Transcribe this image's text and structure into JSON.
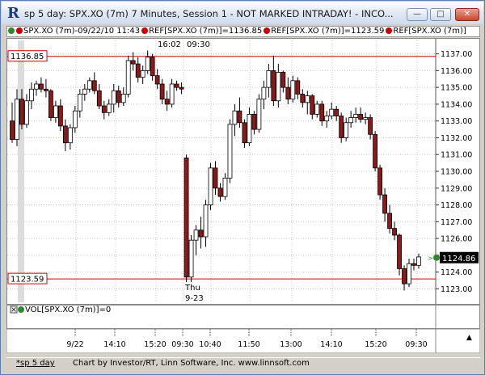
{
  "window": {
    "title": "sp 5 day: SPX.XO (7m) 7 Minutes, Session 1 - NOT MARKED INTRADAY! - INCO..."
  },
  "legend": {
    "items": [
      {
        "text": "SPX.XO (7m)-09/22/10 11:43",
        "dot_colors": [
          "#2c8a2c",
          "#cc0000"
        ]
      },
      {
        "text": "REF[SPX.XO (7m)]=1136.85",
        "dot_colors": [
          "#cc0000"
        ]
      },
      {
        "text": "REF[SPX.XO (7m)]=1123.59",
        "dot_colors": [
          "#cc0000"
        ]
      },
      {
        "text": "REF[SPX.XO (7m)]",
        "dot_colors": [
          "#cc0000"
        ]
      }
    ]
  },
  "chart_data": {
    "type": "candlestick",
    "title": "",
    "y_axis": {
      "min": 1122.2,
      "max": 1137.8,
      "ticks": [
        "1123.00",
        "1124.00",
        "1125.00",
        "1126.00",
        "1127.00",
        "1128.00",
        "1129.00",
        "1130.00",
        "1131.00",
        "1132.00",
        "1133.00",
        "1134.00",
        "1135.00",
        "1136.00",
        "1137.00"
      ]
    },
    "x_labels": [
      "9/22",
      "14:10",
      "15:20",
      "09:30",
      "10:40",
      "11:50",
      "13:00",
      "14:10",
      "15:20",
      "09:30"
    ],
    "top_labels": [
      "16:02",
      "09:30"
    ],
    "session_label": [
      "Thu",
      "9-23"
    ],
    "ref_lines": [
      {
        "value": 1136.85,
        "label": "1136.85",
        "color": "#cc0000"
      },
      {
        "value": 1123.59,
        "label": "1123.59",
        "color": "#cc0000"
      }
    ],
    "last_price": {
      "value": 1124.86,
      "label": "1124.86"
    },
    "up_color": "#ffffff",
    "down_color": "#8b1a1a",
    "candles": [
      {
        "o": 1133.0,
        "h": 1134.1,
        "l": 1131.7,
        "c": 1131.9
      },
      {
        "o": 1131.9,
        "h": 1134.9,
        "l": 1131.5,
        "c": 1134.3
      },
      {
        "o": 1134.3,
        "h": 1134.9,
        "l": 1132.5,
        "c": 1132.8
      },
      {
        "o": 1132.8,
        "h": 1134.6,
        "l": 1132.6,
        "c": 1134.2
      },
      {
        "o": 1134.2,
        "h": 1135.3,
        "l": 1133.7,
        "c": 1134.9
      },
      {
        "o": 1134.9,
        "h": 1135.4,
        "l": 1134.5,
        "c": 1135.2
      },
      {
        "o": 1135.2,
        "h": 1135.6,
        "l": 1134.7,
        "c": 1134.9
      },
      {
        "o": 1134.9,
        "h": 1135.5,
        "l": 1134.4,
        "c": 1134.8
      },
      {
        "o": 1134.8,
        "h": 1134.9,
        "l": 1133.0,
        "c": 1133.2
      },
      {
        "o": 1133.2,
        "h": 1134.2,
        "l": 1132.9,
        "c": 1133.9
      },
      {
        "o": 1133.9,
        "h": 1134.3,
        "l": 1132.4,
        "c": 1132.7
      },
      {
        "o": 1132.7,
        "h": 1133.1,
        "l": 1131.2,
        "c": 1131.7
      },
      {
        "o": 1131.7,
        "h": 1132.8,
        "l": 1131.3,
        "c": 1132.6
      },
      {
        "o": 1132.6,
        "h": 1133.9,
        "l": 1132.3,
        "c": 1133.6
      },
      {
        "o": 1133.6,
        "h": 1134.9,
        "l": 1133.2,
        "c": 1134.6
      },
      {
        "o": 1134.6,
        "h": 1135.2,
        "l": 1134.2,
        "c": 1134.9
      },
      {
        "o": 1134.9,
        "h": 1135.6,
        "l": 1134.7,
        "c": 1135.4
      },
      {
        "o": 1135.4,
        "h": 1135.9,
        "l": 1134.6,
        "c": 1134.8
      },
      {
        "o": 1134.8,
        "h": 1135.2,
        "l": 1133.7,
        "c": 1133.9
      },
      {
        "o": 1133.9,
        "h": 1134.2,
        "l": 1133.1,
        "c": 1133.5
      },
      {
        "o": 1133.5,
        "h": 1134.3,
        "l": 1133.3,
        "c": 1134.0
      },
      {
        "o": 1134.0,
        "h": 1135.2,
        "l": 1133.5,
        "c": 1134.8
      },
      {
        "o": 1134.8,
        "h": 1135.1,
        "l": 1133.8,
        "c": 1134.1
      },
      {
        "o": 1134.1,
        "h": 1135.0,
        "l": 1133.9,
        "c": 1134.6
      },
      {
        "o": 1134.6,
        "h": 1136.9,
        "l": 1134.4,
        "c": 1136.6
      },
      {
        "o": 1136.6,
        "h": 1137.1,
        "l": 1136.0,
        "c": 1136.4
      },
      {
        "o": 1136.4,
        "h": 1136.8,
        "l": 1135.3,
        "c": 1135.6
      },
      {
        "o": 1135.6,
        "h": 1136.3,
        "l": 1135.2,
        "c": 1136.0
      },
      {
        "o": 1136.0,
        "h": 1137.2,
        "l": 1135.8,
        "c": 1136.8
      },
      {
        "o": 1136.8,
        "h": 1137.0,
        "l": 1135.4,
        "c": 1135.7
      },
      {
        "o": 1135.7,
        "h": 1136.1,
        "l": 1134.9,
        "c": 1135.2
      },
      {
        "o": 1135.2,
        "h": 1135.5,
        "l": 1134.0,
        "c": 1134.3
      },
      {
        "o": 1134.3,
        "h": 1134.8,
        "l": 1133.6,
        "c": 1134.0
      },
      {
        "o": 1134.0,
        "h": 1135.5,
        "l": 1133.8,
        "c": 1135.2
      },
      {
        "o": 1135.2,
        "h": 1135.4,
        "l": 1134.8,
        "c": 1135.0
      },
      {
        "o": 1135.0,
        "h": 1135.3,
        "l": 1134.6,
        "c": 1134.9
      },
      {
        "o": 1130.8,
        "h": 1131.0,
        "l": 1123.4,
        "c": 1123.7
      },
      {
        "o": 1123.7,
        "h": 1126.2,
        "l": 1123.4,
        "c": 1125.9
      },
      {
        "o": 1125.9,
        "h": 1126.8,
        "l": 1125.0,
        "c": 1126.5
      },
      {
        "o": 1126.5,
        "h": 1127.3,
        "l": 1125.4,
        "c": 1126.1
      },
      {
        "o": 1126.1,
        "h": 1128.3,
        "l": 1125.5,
        "c": 1128.0
      },
      {
        "o": 1128.0,
        "h": 1130.5,
        "l": 1127.7,
        "c": 1130.2
      },
      {
        "o": 1130.2,
        "h": 1130.6,
        "l": 1128.6,
        "c": 1129.0
      },
      {
        "o": 1129.0,
        "h": 1129.3,
        "l": 1128.2,
        "c": 1128.5
      },
      {
        "o": 1128.5,
        "h": 1129.9,
        "l": 1128.3,
        "c": 1129.6
      },
      {
        "o": 1129.6,
        "h": 1133.1,
        "l": 1129.3,
        "c": 1132.8
      },
      {
        "o": 1132.8,
        "h": 1134.0,
        "l": 1132.1,
        "c": 1133.6
      },
      {
        "o": 1133.6,
        "h": 1134.4,
        "l": 1132.6,
        "c": 1132.9
      },
      {
        "o": 1132.9,
        "h": 1133.1,
        "l": 1131.4,
        "c": 1131.7
      },
      {
        "o": 1131.7,
        "h": 1133.8,
        "l": 1131.5,
        "c": 1133.4
      },
      {
        "o": 1133.4,
        "h": 1133.6,
        "l": 1132.2,
        "c": 1132.5
      },
      {
        "o": 1132.5,
        "h": 1134.6,
        "l": 1132.3,
        "c": 1134.3
      },
      {
        "o": 1134.3,
        "h": 1135.4,
        "l": 1133.7,
        "c": 1135.0
      },
      {
        "o": 1135.0,
        "h": 1136.4,
        "l": 1134.4,
        "c": 1136.0
      },
      {
        "o": 1136.0,
        "h": 1136.9,
        "l": 1133.9,
        "c": 1134.2
      },
      {
        "o": 1134.2,
        "h": 1136.4,
        "l": 1133.8,
        "c": 1135.9
      },
      {
        "o": 1135.9,
        "h": 1136.0,
        "l": 1134.7,
        "c": 1135.0
      },
      {
        "o": 1135.0,
        "h": 1135.6,
        "l": 1134.0,
        "c": 1134.3
      },
      {
        "o": 1134.3,
        "h": 1135.7,
        "l": 1134.1,
        "c": 1135.4
      },
      {
        "o": 1135.4,
        "h": 1135.6,
        "l": 1134.3,
        "c": 1134.6
      },
      {
        "o": 1134.6,
        "h": 1134.9,
        "l": 1133.8,
        "c": 1134.1
      },
      {
        "o": 1134.1,
        "h": 1134.8,
        "l": 1133.4,
        "c": 1134.5
      },
      {
        "o": 1134.5,
        "h": 1134.6,
        "l": 1133.1,
        "c": 1133.4
      },
      {
        "o": 1133.4,
        "h": 1134.2,
        "l": 1133.2,
        "c": 1134.0
      },
      {
        "o": 1134.0,
        "h": 1134.2,
        "l": 1132.7,
        "c": 1133.0
      },
      {
        "o": 1133.0,
        "h": 1133.6,
        "l": 1132.6,
        "c": 1133.3
      },
      {
        "o": 1133.3,
        "h": 1134.1,
        "l": 1133.1,
        "c": 1133.7
      },
      {
        "o": 1133.7,
        "h": 1133.9,
        "l": 1133.0,
        "c": 1133.3
      },
      {
        "o": 1133.3,
        "h": 1133.5,
        "l": 1131.7,
        "c": 1132.0
      },
      {
        "o": 1132.0,
        "h": 1133.2,
        "l": 1131.8,
        "c": 1132.9
      },
      {
        "o": 1132.9,
        "h": 1133.6,
        "l": 1132.6,
        "c": 1133.2
      },
      {
        "o": 1133.2,
        "h": 1133.8,
        "l": 1132.9,
        "c": 1133.4
      },
      {
        "o": 1133.4,
        "h": 1133.8,
        "l": 1132.9,
        "c": 1133.1
      },
      {
        "o": 1133.1,
        "h": 1133.5,
        "l": 1132.8,
        "c": 1133.2
      },
      {
        "o": 1133.2,
        "h": 1133.4,
        "l": 1131.9,
        "c": 1132.2
      },
      {
        "o": 1132.2,
        "h": 1132.4,
        "l": 1130.0,
        "c": 1130.2
      },
      {
        "o": 1130.2,
        "h": 1130.4,
        "l": 1128.3,
        "c": 1128.6
      },
      {
        "o": 1128.6,
        "h": 1129.0,
        "l": 1127.0,
        "c": 1127.5
      },
      {
        "o": 1127.5,
        "h": 1128.0,
        "l": 1126.3,
        "c": 1126.6
      },
      {
        "o": 1126.6,
        "h": 1127.0,
        "l": 1125.9,
        "c": 1126.2
      },
      {
        "o": 1126.2,
        "h": 1126.3,
        "l": 1123.8,
        "c": 1124.2
      },
      {
        "o": 1124.2,
        "h": 1124.4,
        "l": 1122.9,
        "c": 1123.3
      },
      {
        "o": 1123.3,
        "h": 1124.8,
        "l": 1123.1,
        "c": 1124.5
      },
      {
        "o": 1124.5,
        "h": 1124.8,
        "l": 1124.1,
        "c": 1124.4
      },
      {
        "o": 1124.4,
        "h": 1125.1,
        "l": 1124.2,
        "c": 1124.9
      }
    ]
  },
  "volume": {
    "label": "VOL[SPX.XO (7m)]=0"
  },
  "status": {
    "tab": "*sp 5 day",
    "credit": "Chart by Investor/RT, Linn Software, Inc. www.linnsoft.com"
  },
  "colors": {
    "ref_line": "#cc0000",
    "grid": "#c8c8c8",
    "last_price_bg": "#000000"
  }
}
